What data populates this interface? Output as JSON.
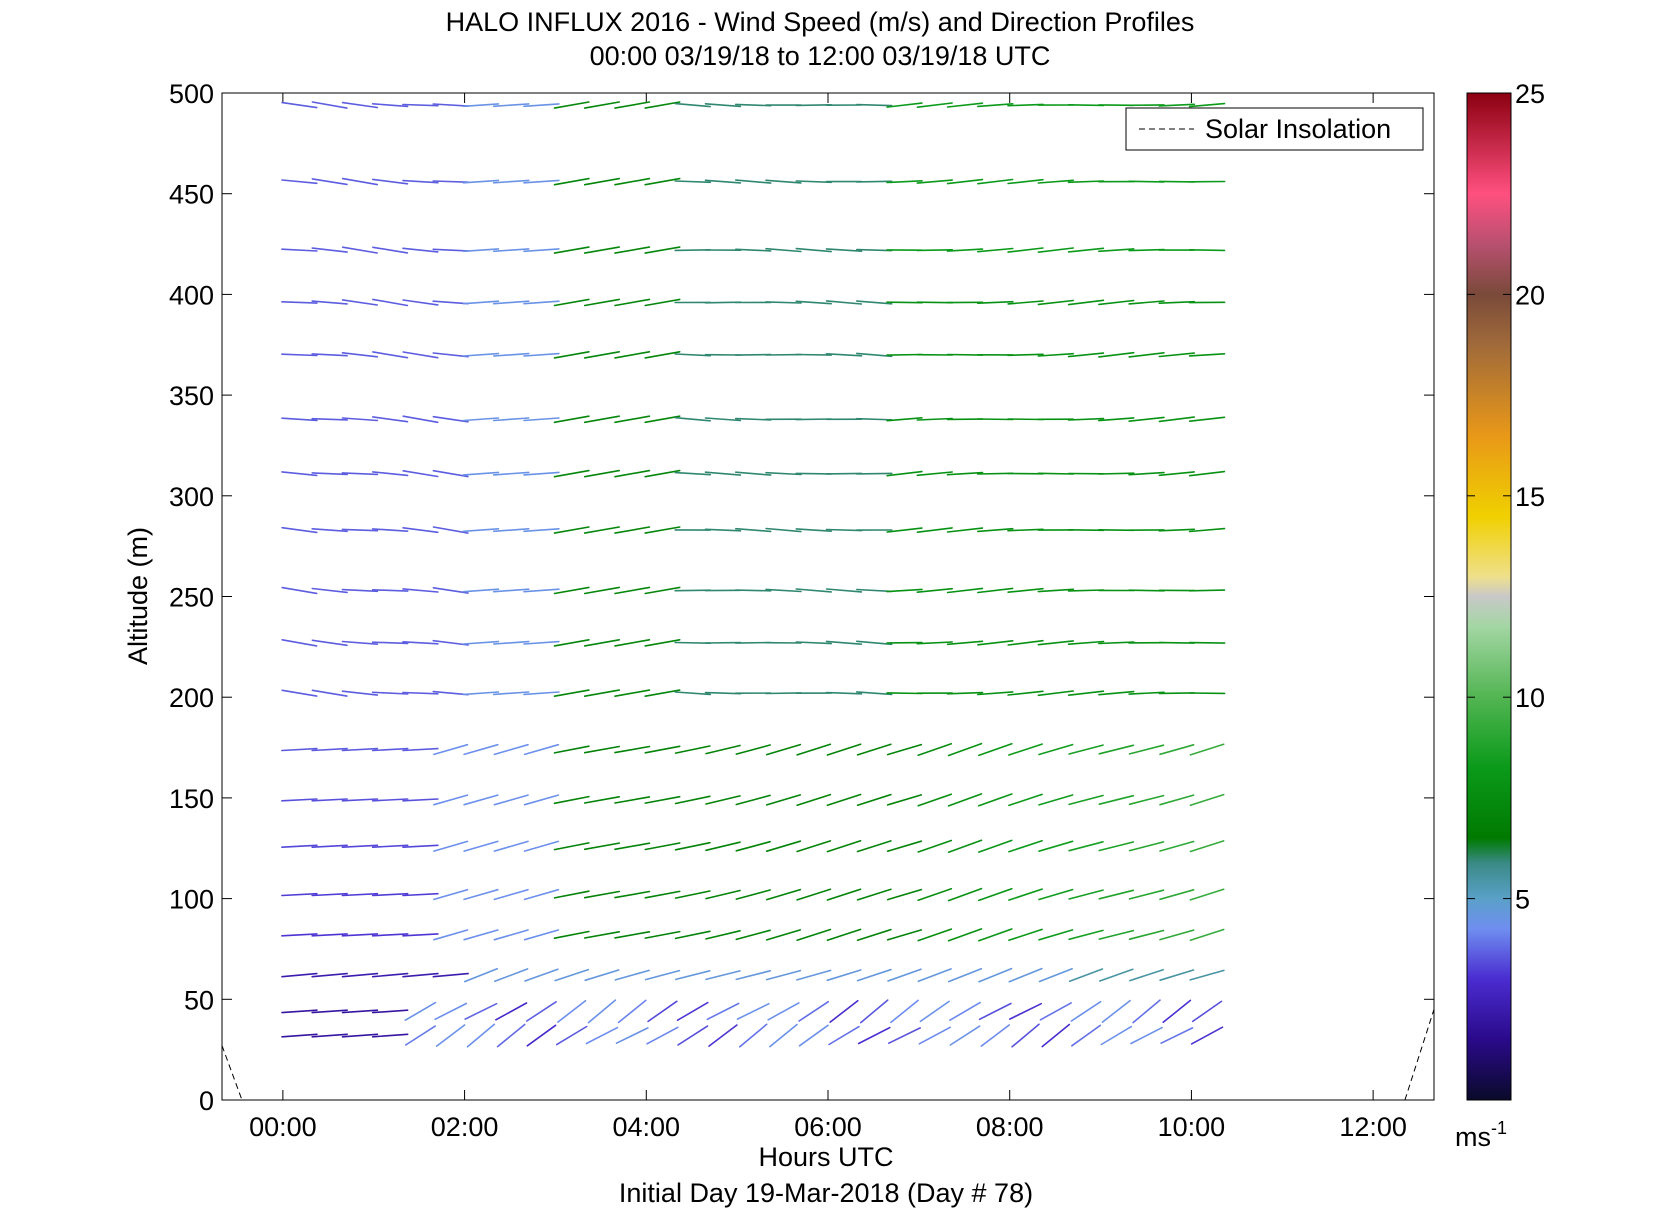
{
  "chart_data": {
    "type": "vector-field",
    "title_line1": "HALO INFLUX 2016 - Wind Speed (m/s) and Direction Profiles",
    "title_line2": "00:00 03/19/18 to 12:00 03/19/18  UTC",
    "xlabel": "Hours UTC",
    "xlabel2": "Initial Day 19-Mar-2018 (Day # 78)",
    "ylabel": "Altitude (m)",
    "xlim": [
      -0.67,
      12.67
    ],
    "ylim": [
      0,
      500
    ],
    "x_ticks": [
      0,
      2,
      4,
      6,
      8,
      10,
      12
    ],
    "x_tick_labels": [
      "00:00",
      "02:00",
      "04:00",
      "06:00",
      "08:00",
      "10:00",
      "12:00"
    ],
    "y_ticks": [
      0,
      50,
      100,
      150,
      200,
      250,
      300,
      350,
      400,
      450,
      500
    ],
    "y_tick_labels": [
      "0",
      "50",
      "100",
      "150",
      "200",
      "250",
      "300",
      "350",
      "400",
      "450",
      "500"
    ],
    "colorbar": {
      "range": [
        0,
        25
      ],
      "ticks": [
        5,
        10,
        15,
        20,
        25
      ],
      "tick_labels": [
        "5",
        "10",
        "15",
        "20",
        "25"
      ],
      "unit_base": "ms",
      "unit_exp": "-1"
    },
    "legend": {
      "label": "Solar Insolation",
      "position": "top-right"
    },
    "altitudes": [
      32,
      44,
      62,
      82,
      102,
      126,
      149,
      174,
      202,
      227,
      253,
      283,
      311,
      338,
      370,
      396,
      422,
      456,
      494
    ],
    "times_start": 0.05,
    "times_step": 0.333,
    "times_count": 31,
    "solar_insolation": [
      {
        "x": -0.67,
        "y": 27
      },
      {
        "x": -0.45,
        "y": 0
      },
      {
        "x": 12.35,
        "y": 0
      },
      {
        "x": 12.67,
        "y": 45
      }
    ]
  }
}
